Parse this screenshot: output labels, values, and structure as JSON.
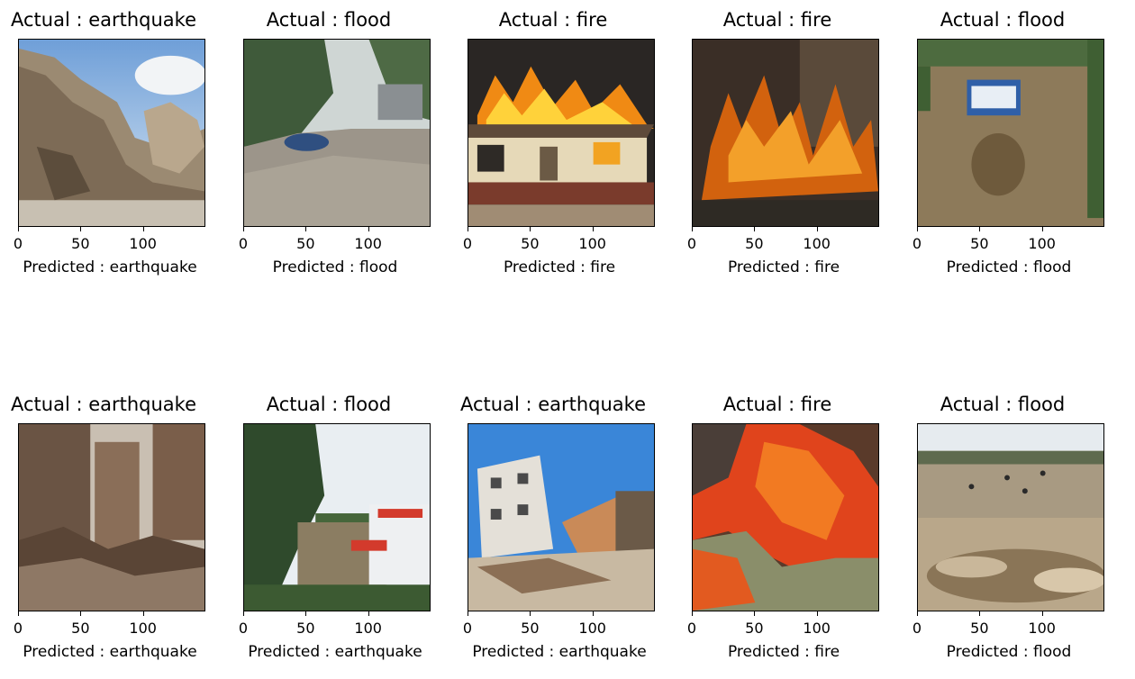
{
  "figure": {
    "tick_labels": [
      "0",
      "50",
      "100"
    ],
    "tick_values": [
      0,
      50,
      100
    ],
    "image_width_units": 150
  },
  "panels": [
    {
      "actual": "Actual : earthquake",
      "predicted": "Predicted : earthquake",
      "scene": "rubble-street"
    },
    {
      "actual": "Actual : flood",
      "predicted": "Predicted : flood",
      "scene": "flooded-road"
    },
    {
      "actual": "Actual : fire",
      "predicted": "Predicted : fire",
      "scene": "burning-house"
    },
    {
      "actual": "Actual : fire",
      "predicted": "Predicted : fire",
      "scene": "forest-fire"
    },
    {
      "actual": "Actual : flood",
      "predicted": "Predicted : flood",
      "scene": "flooded-village"
    },
    {
      "actual": "Actual : earthquake",
      "predicted": "Predicted : earthquake",
      "scene": "collapsed-buildings"
    },
    {
      "actual": "Actual : flood",
      "predicted": "Predicted : earthquake",
      "scene": "river-houses"
    },
    {
      "actual": "Actual : earthquake",
      "predicted": "Predicted : earthquake",
      "scene": "tilted-buildings"
    },
    {
      "actual": "Actual : fire",
      "predicted": "Predicted : fire",
      "scene": "grass-fire"
    },
    {
      "actual": "Actual : flood",
      "predicted": "Predicted : flood",
      "scene": "flood-waves-crowd"
    }
  ],
  "chart_data": {
    "type": "image-grid",
    "rows": 2,
    "cols": 5,
    "x_ticks": [
      0,
      50,
      100
    ],
    "x_range": [
      0,
      150
    ]
  }
}
